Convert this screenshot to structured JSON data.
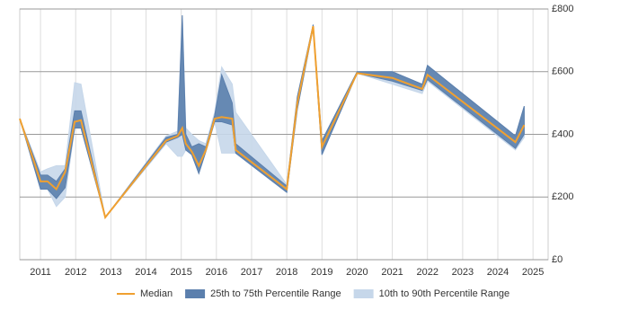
{
  "chart_data": {
    "type": "line",
    "x": [
      2010.41,
      2011.0,
      2011.2,
      2011.45,
      2011.7,
      2011.97,
      2012.15,
      2012.84,
      2014.57,
      2014.9,
      2015.03,
      2015.13,
      2015.3,
      2015.5,
      2015.7,
      2015.95,
      2016.15,
      2016.45,
      2016.55,
      2018.0,
      2018.3,
      2018.75,
      2019.0,
      2020.0,
      2021.0,
      2021.85,
      2022.0,
      2024.5,
      2024.75
    ],
    "series": [
      {
        "name": "Median",
        "color": "#f0a030",
        "values": [
          450,
          250,
          250,
          225,
          280,
          440,
          445,
          135,
          380,
          395,
          420,
          370,
          345,
          300,
          350,
          450,
          455,
          450,
          350,
          225,
          500,
          745,
          360,
          595,
          580,
          545,
          590,
          375,
          430
        ]
      }
    ],
    "bands": [
      {
        "name": "10th to 90th Percentile Range",
        "color": "#c6d7ea",
        "lower": [
          450,
          225,
          225,
          170,
          200,
          420,
          420,
          135,
          370,
          330,
          330,
          350,
          335,
          275,
          345,
          440,
          340,
          340,
          340,
          215,
          480,
          740,
          335,
          595,
          560,
          530,
          570,
          350,
          390
        ],
        "upper": [
          450,
          280,
          290,
          300,
          300,
          565,
          560,
          135,
          395,
          410,
          780,
          420,
          400,
          380,
          370,
          470,
          615,
          560,
          470,
          240,
          520,
          750,
          380,
          600,
          600,
          560,
          620,
          395,
          490
        ]
      },
      {
        "name": "25th to 75th Percentile Range",
        "color": "#5b7fad",
        "lower": [
          450,
          225,
          225,
          195,
          230,
          420,
          420,
          135,
          375,
          390,
          400,
          350,
          335,
          275,
          345,
          440,
          440,
          430,
          340,
          215,
          480,
          740,
          335,
          595,
          570,
          540,
          575,
          355,
          400
        ],
        "upper": [
          450,
          270,
          270,
          250,
          290,
          475,
          475,
          135,
          390,
          400,
          780,
          400,
          360,
          370,
          360,
          460,
          590,
          500,
          370,
          235,
          520,
          750,
          380,
          600,
          600,
          560,
          620,
          395,
          490
        ]
      }
    ],
    "xlim": [
      2010.41,
      2025.43
    ],
    "xticks": [
      2011,
      2012,
      2013,
      2014,
      2015,
      2016,
      2017,
      2018,
      2019,
      2020,
      2021,
      2022,
      2023,
      2024,
      2025
    ],
    "ylim": [
      0,
      800
    ],
    "yticks": [
      {
        "value": 0,
        "label": "£0"
      },
      {
        "value": 200,
        "label": "£200"
      },
      {
        "value": 400,
        "label": "£400"
      },
      {
        "value": 600,
        "label": "£600"
      },
      {
        "value": 800,
        "label": "£800"
      }
    ],
    "grid": true
  }
}
